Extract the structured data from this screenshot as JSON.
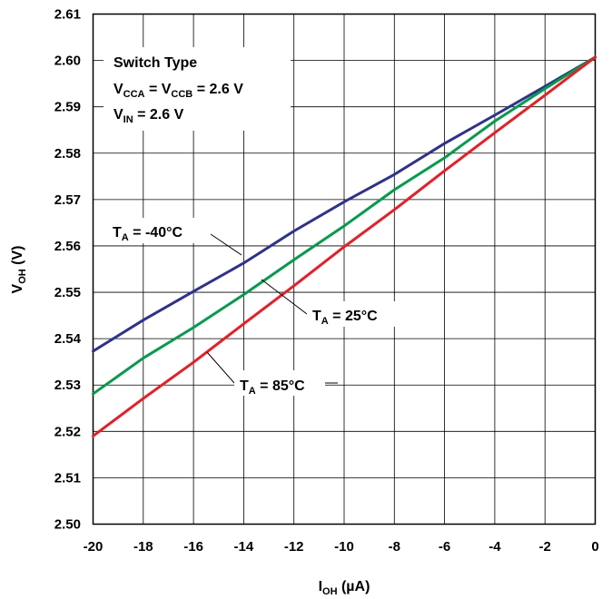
{
  "chart_data": {
    "type": "line",
    "title": "",
    "xlabel": {
      "main": "I",
      "sub": "OH",
      "rest": " (µA)"
    },
    "ylabel": {
      "main": "V",
      "sub": "OH",
      "rest": " (V)"
    },
    "xlim": [
      -20,
      0
    ],
    "ylim": [
      2.5,
      2.61
    ],
    "x_ticks": [
      -20,
      -18,
      -16,
      -14,
      -12,
      -10,
      -8,
      -6,
      -4,
      -2,
      0
    ],
    "y_ticks": [
      2.5,
      2.51,
      2.52,
      2.53,
      2.54,
      2.55,
      2.56,
      2.57,
      2.58,
      2.59,
      2.6,
      2.61
    ],
    "x_tick_labels": [
      "-20",
      "-18",
      "-16",
      "-14",
      "-12",
      "-10",
      "-8",
      "-6",
      "-4",
      "-2",
      "0"
    ],
    "y_tick_labels": [
      "2.50",
      "2.51",
      "2.52",
      "2.53",
      "2.54",
      "2.55",
      "2.56",
      "2.57",
      "2.58",
      "2.59",
      "2.60",
      "2.61"
    ],
    "grid": true,
    "conditions": {
      "line1": "Switch Type",
      "line2": {
        "a": "V",
        "a_sub": "CCA",
        "b": " = V",
        "b_sub": "CCB",
        "c": " = 2.6 V"
      },
      "line3": {
        "a": "V",
        "a_sub": "IN",
        "b": " = 2.6 V"
      }
    },
    "series": [
      {
        "name": "T_A = -40°C",
        "label": {
          "main": "T",
          "sub": "A",
          "rest": " = -40°C"
        },
        "color": "#2e3192",
        "x": [
          -20,
          -18,
          -16,
          -14,
          -12,
          -10,
          -8,
          -6,
          -4,
          -2,
          0
        ],
        "values": [
          2.5373,
          2.544,
          2.5502,
          2.5563,
          2.5632,
          2.5695,
          2.5754,
          2.5821,
          2.5882,
          2.5944,
          2.6007
        ]
      },
      {
        "name": "T_A = 25°C",
        "label": {
          "main": "T",
          "sub": "A",
          "rest": " = 25°C"
        },
        "color": "#009e49",
        "x": [
          -20,
          -18,
          -16,
          -14,
          -12,
          -10,
          -8,
          -6,
          -4,
          -2,
          0
        ],
        "values": [
          2.5281,
          2.5358,
          2.5424,
          2.5495,
          2.557,
          2.5643,
          2.5721,
          2.579,
          2.5869,
          2.5939,
          2.6007
        ]
      },
      {
        "name": "T_A = 85°C",
        "label": {
          "main": "T",
          "sub": "A",
          "rest": " = 85°C"
        },
        "color": "#ed1c24",
        "x": [
          -20,
          -18,
          -16,
          -14,
          -12,
          -10,
          -8,
          -6,
          -4,
          -2,
          0
        ],
        "values": [
          2.519,
          2.5271,
          2.5349,
          2.5432,
          2.5514,
          2.5598,
          2.5678,
          2.5762,
          2.5844,
          2.5925,
          2.6007
        ]
      }
    ]
  }
}
